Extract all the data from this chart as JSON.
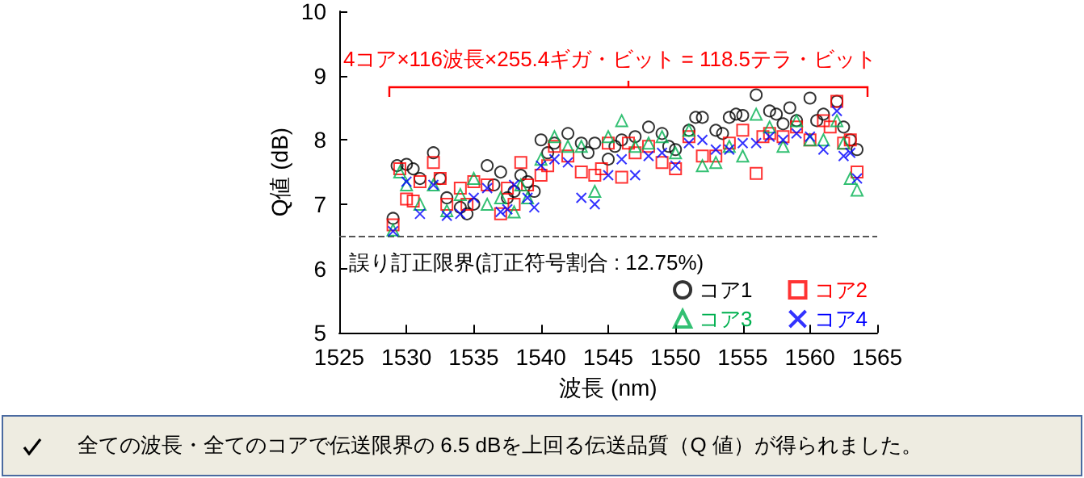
{
  "chart_data": {
    "type": "scatter",
    "xlabel": "波長 (nm)",
    "ylabel": "Q値 (dB)",
    "xlim": [
      1525,
      1565
    ],
    "xticks": [
      1525,
      1530,
      1535,
      1540,
      1545,
      1550,
      1555,
      1560,
      1565
    ],
    "ylim": [
      5,
      10
    ],
    "yticks": [
      5,
      6,
      7,
      8,
      9,
      10
    ],
    "grid": false,
    "legend": "bottom right",
    "ref_lines": [
      {
        "axis": "y",
        "value": 6.5,
        "color": "#555555",
        "line_style": "dashed"
      }
    ],
    "annotations": [
      "4コア×116波長×255.4ギガ・ビット = 118.5テラ・ビット",
      "誤り訂正限界(訂正符号割合 : 12.75%)",
      "全ての波長・全てのコアで伝送限界の 6.5 dBを上回る伝送品質（Q 値）が得られました。"
    ],
    "series": [
      {
        "name": "コア1",
        "color": "#000000",
        "marker": "circle",
        "x": [
          1529,
          1529.3,
          1530,
          1530.5,
          1531,
          1532,
          1532.5,
          1533,
          1534,
          1534.5,
          1535,
          1536,
          1536.5,
          1537,
          1537.5,
          1538,
          1538.5,
          1539,
          1539.5,
          1540,
          1540.5,
          1541,
          1542,
          1543,
          1543.5,
          1544,
          1545,
          1545.5,
          1546,
          1547,
          1548,
          1549,
          1549.5,
          1550,
          1551,
          1551.5,
          1552,
          1553,
          1553.5,
          1554,
          1554.5,
          1555,
          1556,
          1557,
          1557.5,
          1558,
          1558.5,
          1559,
          1560,
          1560.5,
          1561,
          1562,
          1562.5,
          1563,
          1563.5
        ],
        "values": [
          6.78,
          7.6,
          7.62,
          7.55,
          7.4,
          7.8,
          7.4,
          7.1,
          6.95,
          6.85,
          7.0,
          7.6,
          7.3,
          7.5,
          7.1,
          7.2,
          7.45,
          7.35,
          7.2,
          8.0,
          7.8,
          7.95,
          8.1,
          7.95,
          7.8,
          7.95,
          7.7,
          7.9,
          8.0,
          8.05,
          8.2,
          8.1,
          7.9,
          7.85,
          8.15,
          8.35,
          8.35,
          8.15,
          8.1,
          8.35,
          8.4,
          8.38,
          8.7,
          8.45,
          8.4,
          8.25,
          8.5,
          8.3,
          8.65,
          8.3,
          8.4,
          8.6,
          8.2,
          8.0,
          7.85
        ]
      },
      {
        "name": "コア2",
        "color": "#ff0000",
        "marker": "square",
        "x": [
          1529,
          1529.5,
          1530,
          1530.5,
          1531,
          1532,
          1532.5,
          1533,
          1534,
          1534.5,
          1535,
          1536,
          1537,
          1537.5,
          1538,
          1538.5,
          1539,
          1540,
          1540.5,
          1541,
          1542,
          1543,
          1544,
          1544.5,
          1545,
          1546,
          1546.5,
          1547,
          1548,
          1549,
          1550,
          1551,
          1552,
          1553,
          1554,
          1555,
          1556,
          1556.5,
          1557,
          1558,
          1559,
          1560,
          1561,
          1561.5,
          1562,
          1562.5,
          1563,
          1563.5
        ],
        "values": [
          6.68,
          7.55,
          7.08,
          7.05,
          7.35,
          7.65,
          7.4,
          7.0,
          7.25,
          7.0,
          7.35,
          7.3,
          6.85,
          7.25,
          7.0,
          7.65,
          7.3,
          7.45,
          7.6,
          7.9,
          7.75,
          7.5,
          7.45,
          7.55,
          7.95,
          7.42,
          7.95,
          7.8,
          7.9,
          7.65,
          7.55,
          8.05,
          7.75,
          7.75,
          7.95,
          8.15,
          7.48,
          8.05,
          8.1,
          8.05,
          8.2,
          8.0,
          8.3,
          8.2,
          8.6,
          7.95,
          8.0,
          7.5
        ]
      },
      {
        "name": "コア3",
        "color": "#00b050",
        "marker": "triangle",
        "x": [
          1529,
          1529.5,
          1530,
          1531,
          1532,
          1533,
          1534,
          1535,
          1536,
          1537,
          1538,
          1538.5,
          1539,
          1540,
          1541,
          1542,
          1543,
          1544,
          1545,
          1546,
          1547,
          1548,
          1549,
          1550,
          1551,
          1552,
          1553,
          1554,
          1555,
          1556,
          1557,
          1558,
          1559,
          1560,
          1561,
          1562,
          1562.5,
          1563,
          1563.5
        ],
        "values": [
          6.6,
          7.5,
          7.3,
          7.0,
          7.3,
          6.9,
          7.15,
          7.4,
          7.0,
          7.1,
          6.88,
          7.3,
          7.1,
          7.7,
          8.05,
          7.9,
          7.9,
          7.2,
          8.05,
          8.3,
          7.9,
          7.95,
          8.05,
          7.8,
          8.15,
          7.6,
          7.65,
          7.9,
          7.75,
          8.4,
          8.2,
          7.9,
          8.3,
          8.0,
          8.0,
          8.3,
          7.95,
          7.4,
          7.22
        ]
      },
      {
        "name": "コア4",
        "color": "#0000ff",
        "marker": "cross",
        "x": [
          1529,
          1530,
          1531,
          1532,
          1533,
          1534,
          1535,
          1536,
          1537,
          1537.5,
          1538,
          1539,
          1539.5,
          1540,
          1541,
          1542,
          1543,
          1544,
          1545,
          1546,
          1547,
          1548,
          1549,
          1550,
          1551,
          1552,
          1553,
          1554,
          1555,
          1556,
          1557,
          1558,
          1559,
          1560,
          1561,
          1562,
          1562.5,
          1563,
          1563.5
        ],
        "values": [
          6.58,
          7.35,
          6.85,
          7.3,
          6.82,
          6.85,
          7.1,
          7.25,
          6.88,
          6.92,
          7.3,
          7.1,
          6.95,
          7.6,
          7.7,
          7.65,
          7.1,
          7.0,
          7.45,
          7.7,
          7.45,
          7.75,
          7.8,
          7.6,
          7.95,
          8.0,
          7.85,
          7.85,
          7.95,
          7.95,
          8.05,
          8.0,
          8.1,
          8.05,
          7.85,
          8.45,
          7.75,
          7.8,
          7.4
        ]
      }
    ]
  }
}
